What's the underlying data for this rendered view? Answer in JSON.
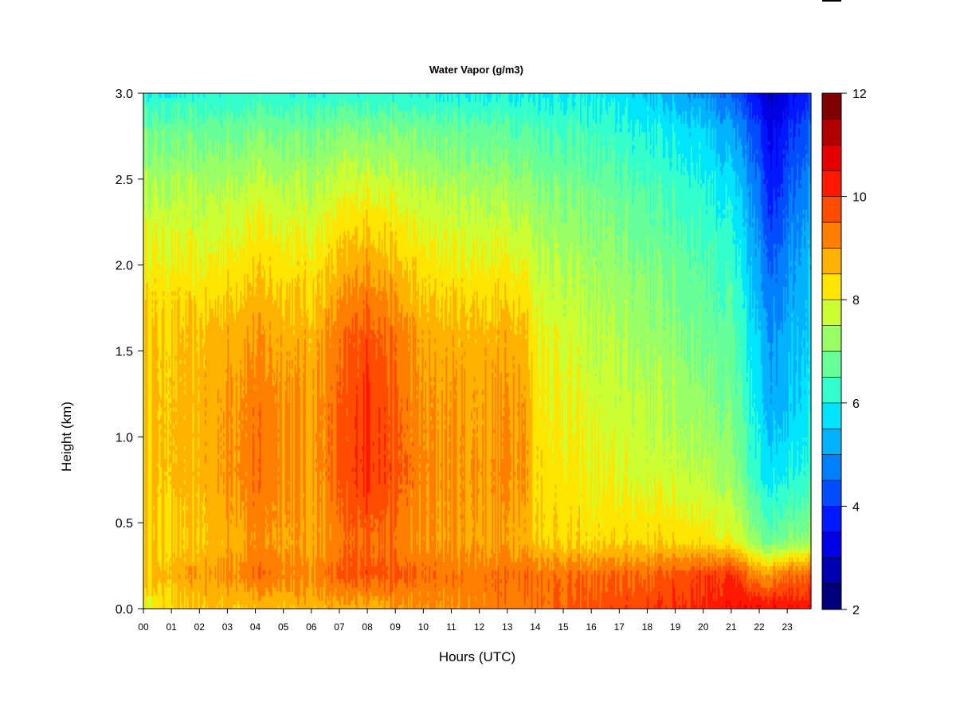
{
  "chart_data": {
    "type": "heatmap",
    "title": "Water Vapor (g/m3)",
    "xlabel": "Hours (UTC)",
    "ylabel": "Height (km)",
    "x_ticks": [
      "00",
      "01",
      "02",
      "03",
      "04",
      "05",
      "06",
      "07",
      "08",
      "09",
      "10",
      "11",
      "12",
      "13",
      "14",
      "15",
      "16",
      "17",
      "18",
      "19",
      "20",
      "21",
      "22",
      "23"
    ],
    "y_ticks": [
      "0.0",
      "0.5",
      "1.0",
      "1.5",
      "2.0",
      "2.5",
      "3.0"
    ],
    "xlim": [
      0,
      23.85
    ],
    "ylim": [
      0.0,
      3.0
    ],
    "colorbar": {
      "min": 2,
      "max": 12,
      "step": 0.5,
      "tick_labels": [
        "2",
        "4",
        "6",
        "8",
        "10",
        "12"
      ],
      "colors": [
        "#00007f",
        "#0000b2",
        "#0000e5",
        "#0019ff",
        "#004cff",
        "#007fff",
        "#00b2ff",
        "#00e5ff",
        "#33ffcc",
        "#66ff99",
        "#99ff66",
        "#ccff33",
        "#ffe500",
        "#ffb200",
        "#ff7f00",
        "#ff4c00",
        "#ff1900",
        "#e50000",
        "#b20000",
        "#7f0000"
      ]
    },
    "description_profiles": {
      "hour_anchors": [
        0,
        2,
        4,
        6,
        8,
        10,
        12,
        13.5,
        14,
        16,
        18,
        20,
        21,
        22,
        22.5,
        23,
        23.85
      ],
      "height_anchors": [
        0.0,
        0.2,
        0.4,
        0.8,
        1.2,
        1.6,
        2.0,
        2.4,
        2.8,
        3.0
      ],
      "values": [
        [
          8.0,
          8.6,
          8.4,
          8.6,
          8.6,
          8.5,
          8.2,
          7.6,
          6.8,
          6.1
        ],
        [
          8.6,
          8.9,
          8.5,
          8.7,
          8.7,
          8.6,
          8.0,
          7.5,
          6.7,
          6.1
        ],
        [
          8.6,
          9.4,
          9.1,
          9.4,
          9.3,
          9.0,
          8.4,
          7.8,
          6.9,
          6.2
        ],
        [
          8.7,
          9.2,
          8.8,
          8.9,
          8.9,
          8.7,
          8.2,
          7.6,
          6.8,
          6.1
        ],
        [
          8.8,
          9.8,
          9.6,
          10.2,
          10.1,
          9.8,
          9.0,
          8.1,
          7.0,
          6.2
        ],
        [
          9.0,
          9.4,
          9.0,
          9.1,
          9.0,
          8.8,
          8.2,
          7.6,
          6.8,
          6.0
        ],
        [
          9.2,
          9.3,
          8.9,
          9.0,
          8.9,
          8.7,
          8.1,
          7.5,
          6.7,
          6.0
        ],
        [
          9.3,
          9.5,
          8.9,
          9.2,
          9.1,
          8.8,
          8.1,
          7.4,
          6.6,
          6.0
        ],
        [
          9.4,
          9.4,
          8.5,
          8.4,
          8.3,
          8.1,
          7.7,
          7.2,
          6.5,
          5.9
        ],
        [
          9.7,
          9.4,
          8.3,
          8.0,
          7.8,
          7.6,
          7.3,
          6.9,
          6.3,
          5.9
        ],
        [
          9.9,
          9.5,
          8.4,
          7.8,
          7.6,
          7.3,
          7.0,
          6.6,
          6.0,
          5.5
        ],
        [
          10.2,
          9.9,
          8.3,
          7.6,
          7.2,
          6.9,
          6.6,
          6.2,
          5.6,
          5.0
        ],
        [
          10.4,
          10.0,
          8.0,
          7.2,
          6.9,
          6.6,
          6.3,
          5.8,
          5.1,
          4.4
        ],
        [
          10.5,
          9.0,
          7.0,
          6.0,
          5.7,
          5.4,
          5.0,
          4.6,
          4.0,
          3.3
        ],
        [
          10.5,
          9.2,
          6.8,
          5.8,
          5.2,
          5.0,
          4.5,
          3.8,
          3.3,
          2.9
        ],
        [
          10.5,
          9.5,
          7.1,
          6.0,
          5.5,
          5.3,
          5.0,
          4.5,
          3.9,
          3.4
        ],
        [
          10.5,
          9.6,
          7.3,
          6.3,
          5.9,
          5.7,
          5.5,
          5.1,
          4.5,
          4.0
        ]
      ]
    }
  }
}
